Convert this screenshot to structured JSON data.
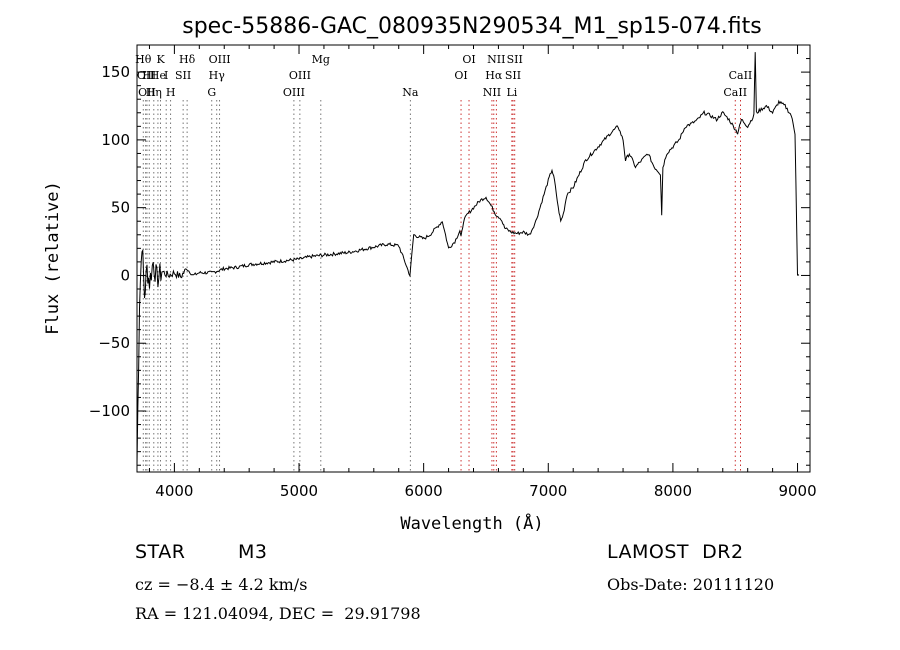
{
  "chart_data": {
    "type": "line",
    "title": "spec-55886-GAC_080935N290534_M1_sp15-074.fits",
    "xlabel": "Wavelength (Å)",
    "ylabel": "Flux (relative)",
    "xlim": [
      3700,
      9100
    ],
    "ylim": [
      -145,
      170
    ],
    "xticks": [
      4000,
      5000,
      6000,
      7000,
      8000,
      9000
    ],
    "xtick_labels": [
      "4000",
      "5000",
      "6000",
      "7000",
      "8000",
      "9000"
    ],
    "yticks": [
      -100,
      -50,
      0,
      50,
      100,
      150
    ],
    "ytick_labels": [
      "−100",
      "−50",
      "0",
      "50",
      "100",
      "150"
    ],
    "grid": false,
    "series": [
      {
        "x": [
          3700,
          3720,
          3740,
          3760,
          3780,
          3800,
          3830,
          3860,
          3900,
          3950,
          4000,
          4050,
          4100,
          4150,
          4200,
          4300,
          4400,
          4500,
          4600,
          4700,
          4800,
          4900,
          5000,
          5100,
          5200,
          5300,
          5400,
          5500,
          5600,
          5700,
          5800,
          5850,
          5890,
          5920,
          6000,
          6050,
          6100,
          6150,
          6200,
          6250,
          6290,
          6300,
          6320,
          6350,
          6400,
          6450,
          6500,
          6550,
          6580,
          6620,
          6650,
          6700,
          6750,
          6800,
          6850,
          6900,
          6950,
          7000,
          7030,
          7050,
          7080,
          7100,
          7120,
          7150,
          7200,
          7300,
          7400,
          7500,
          7560,
          7600,
          7620,
          7650,
          7700,
          7750,
          7800,
          7850,
          7900,
          7910,
          7920,
          7950,
          8000,
          8050,
          8100,
          8150,
          8200,
          8250,
          8300,
          8350,
          8400,
          8450,
          8500,
          8520,
          8550,
          8600,
          8650,
          8660,
          8670,
          8700,
          8750,
          8800,
          8850,
          8900,
          8950,
          8980,
          9000,
          9010
        ],
        "y": [
          -140,
          -20,
          25,
          -15,
          5,
          -5,
          10,
          -3,
          3,
          0,
          2,
          -1,
          5,
          0,
          2,
          2,
          5,
          6,
          8,
          9,
          10,
          11,
          12,
          14,
          15,
          16,
          17,
          19,
          21,
          23,
          22,
          10,
          0,
          30,
          27,
          30,
          35,
          40,
          20,
          25,
          33,
          28,
          40,
          45,
          50,
          55,
          58,
          50,
          45,
          42,
          35,
          32,
          31,
          32,
          30,
          40,
          55,
          70,
          78,
          70,
          50,
          40,
          45,
          60,
          65,
          85,
          95,
          105,
          110,
          100,
          85,
          90,
          80,
          85,
          90,
          80,
          75,
          45,
          80,
          90,
          95,
          100,
          110,
          112,
          115,
          120,
          118,
          115,
          120,
          115,
          108,
          105,
          115,
          110,
          118,
          165,
          120,
          122,
          125,
          120,
          128,
          125,
          118,
          105,
          0,
          0
        ]
      }
    ],
    "line_marks": [
      {
        "x": 3750,
        "label": "Hθ",
        "row": 0
      },
      {
        "x": 3770,
        "label": "OII",
        "row": 1
      },
      {
        "x": 3780,
        "label": "OII",
        "row": 2
      },
      {
        "x": 3798,
        "label": "HI",
        "row": 1
      },
      {
        "x": 3835,
        "label": "Hη",
        "row": 2
      },
      {
        "x": 3868,
        "label": "He",
        "row": 1
      },
      {
        "x": 3889,
        "label": "K",
        "row": 0
      },
      {
        "x": 3934,
        "label": "I",
        "row": 1
      },
      {
        "x": 3970,
        "label": "H",
        "row": 2
      },
      {
        "x": 4070,
        "label": "SII",
        "row": 1
      },
      {
        "x": 4102,
        "label": "Hδ",
        "row": 0
      },
      {
        "x": 4300,
        "label": "G",
        "row": 2
      },
      {
        "x": 4340,
        "label": "Hγ",
        "row": 1
      },
      {
        "x": 4363,
        "label": "OIII",
        "row": 0
      },
      {
        "x": 4959,
        "label": "OIII",
        "row": 2
      },
      {
        "x": 5007,
        "label": "OIII",
        "row": 1
      },
      {
        "x": 5175,
        "label": "Mg",
        "row": 0
      },
      {
        "x": 5893,
        "label": "Na",
        "row": 2
      },
      {
        "x": 6300,
        "label": "OI",
        "row": 1
      },
      {
        "x": 6364,
        "label": "OI",
        "row": 0
      },
      {
        "x": 6548,
        "label": "NII",
        "row": 2
      },
      {
        "x": 6563,
        "label": "Hα",
        "row": 1
      },
      {
        "x": 6583,
        "label": "NII",
        "row": 0
      },
      {
        "x": 6708,
        "label": "Li",
        "row": 2
      },
      {
        "x": 6717,
        "label": "SII",
        "row": 1
      },
      {
        "x": 6731,
        "label": "SII",
        "row": 0
      },
      {
        "x": 8500,
        "label": "CaII",
        "row": 2
      },
      {
        "x": 8542,
        "label": "CaII",
        "row": 1
      }
    ]
  },
  "info": {
    "class": "STAR",
    "subclass": "M3",
    "survey": "LAMOST  DR2",
    "cz": "cz = −8.4 ± 4.2 km/s",
    "obsdate": "Obs-Date: 20111120",
    "radec": "RA = 121.04094, DEC =  29.91798"
  }
}
